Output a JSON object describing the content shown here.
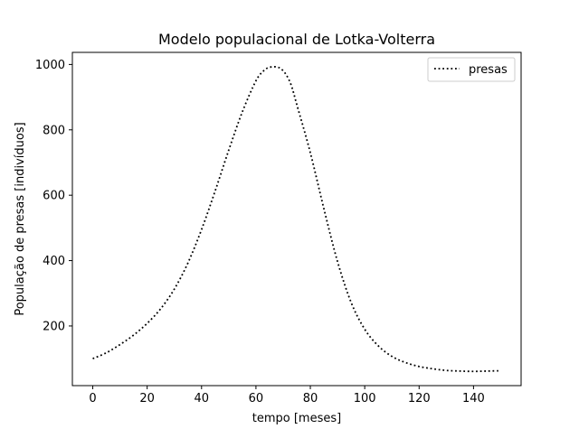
{
  "chart_data": {
    "type": "line",
    "title": "Modelo populacional de Lotka-Volterra",
    "xlabel": "tempo [meses]",
    "ylabel": "População de presas [indivíduos]",
    "xlim": [
      -7.5,
      157.5
    ],
    "ylim": [
      17.5,
      1037
    ],
    "xticks": [
      0,
      20,
      40,
      60,
      80,
      100,
      120,
      140
    ],
    "yticks": [
      200,
      400,
      600,
      800,
      1000
    ],
    "grid": false,
    "legend_position": "upper right",
    "series": [
      {
        "name": "presas",
        "color": "#000000",
        "line_style": "dotted",
        "x": [
          0,
          5,
          10,
          15,
          20,
          25,
          30,
          35,
          40,
          45,
          50,
          55,
          60,
          63,
          65,
          67,
          69,
          71,
          73,
          75,
          80,
          85,
          90,
          95,
          100,
          105,
          110,
          115,
          120,
          125,
          130,
          135,
          140,
          145,
          150
        ],
        "y": [
          100,
          118,
          143,
          172,
          208,
          253,
          313,
          393,
          495,
          613,
          738,
          855,
          950,
          982,
          991,
          993,
          988,
          970,
          936,
          878,
          730,
          558,
          397,
          272,
          190,
          139,
          107,
          88,
          76,
          69,
          64,
          62,
          61,
          62,
          63
        ]
      }
    ]
  }
}
